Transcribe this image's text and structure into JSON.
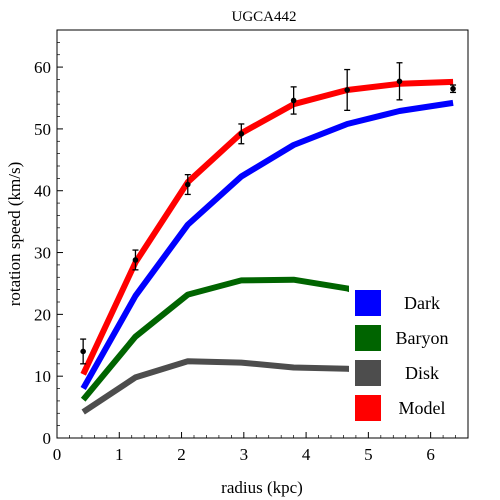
{
  "chart_data": {
    "type": "line",
    "title": "UGCA442",
    "xlabel": "radius (kpc)",
    "ylabel": "rotation speed (km/s)",
    "xlim": [
      0,
      6.6
    ],
    "ylim": [
      0,
      66
    ],
    "xticks": [
      0,
      1,
      2,
      3,
      4,
      5,
      6
    ],
    "yticks": [
      0,
      10,
      20,
      30,
      40,
      50,
      60
    ],
    "grid": false,
    "legend_position": "bottom-right",
    "x": [
      0.42,
      1.26,
      2.1,
      2.96,
      3.8,
      4.66,
      5.5,
      6.36
    ],
    "series": [
      {
        "name": "Dark",
        "color": "#0000ff",
        "values": [
          8.0,
          23.0,
          34.5,
          42.3,
          47.4,
          50.8,
          52.9,
          54.2
        ]
      },
      {
        "name": "Baryon",
        "color": "#006400",
        "values": [
          6.2,
          16.4,
          23.2,
          25.5,
          25.6,
          24.2,
          21.5,
          19.3
        ]
      },
      {
        "name": "Disk",
        "color": "#4d4d4d",
        "values": [
          4.2,
          9.8,
          12.4,
          12.2,
          11.4,
          11.2,
          10.5,
          9.5
        ]
      },
      {
        "name": "Model",
        "color": "#ff0000",
        "values": [
          10.3,
          28.4,
          41.4,
          49.3,
          54.0,
          56.3,
          57.3,
          57.6
        ]
      }
    ],
    "observed": {
      "x": [
        0.42,
        1.26,
        2.1,
        2.96,
        3.8,
        4.66,
        5.5,
        6.36
      ],
      "y": [
        14.0,
        28.8,
        41.0,
        49.2,
        54.6,
        56.3,
        57.7,
        56.5
      ],
      "err": [
        2.0,
        1.6,
        1.6,
        1.6,
        2.2,
        3.3,
        3.0,
        0.6
      ]
    }
  }
}
